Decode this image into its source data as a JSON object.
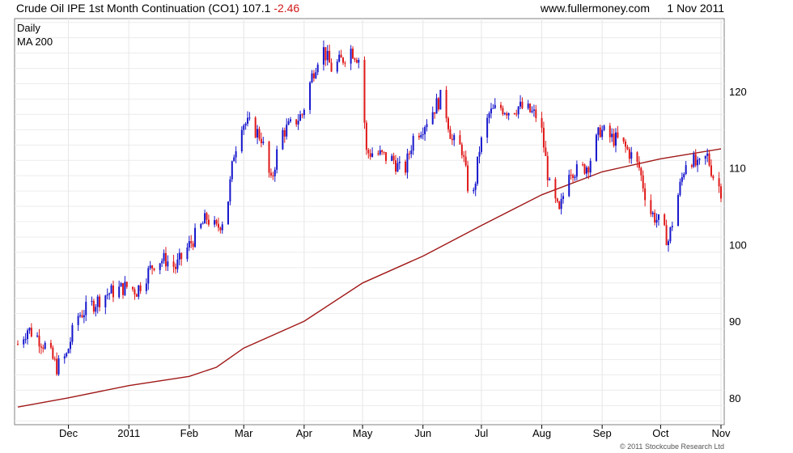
{
  "header": {
    "title": "Crude Oil IPE 1st Month Continuation (CO1)",
    "last": "107.1",
    "change": "-2.46",
    "site": "www.fullermoney.com",
    "date": "1 Nov 2011"
  },
  "legend": [
    {
      "label": "Daily",
      "color": "#1010c0"
    },
    {
      "label": "MA 200",
      "color": "#a01818"
    }
  ],
  "copyright": "© 2011 Stockcube Research Ltd",
  "colors": {
    "up": "#1515cc",
    "down": "#e01818",
    "ma": "#a01818",
    "grid": "#d0d0d0"
  },
  "chart_data": {
    "type": "candlestick",
    "title": "Crude Oil IPE 1st Month Continuation (CO1)",
    "y_axis_side": "right",
    "ylim": [
      76.5,
      129.5
    ],
    "y_ticks": [
      80,
      90,
      100,
      110,
      120
    ],
    "x_range": [
      "2010-11-05",
      "2011-11-01"
    ],
    "x_ticks": [
      {
        "label": "Dec",
        "date": "2010-12-01"
      },
      {
        "label": "2011",
        "date": "2011-01-01"
      },
      {
        "label": "Feb",
        "date": "2011-02-01"
      },
      {
        "label": "Mar",
        "date": "2011-03-01"
      },
      {
        "label": "Apr",
        "date": "2011-04-01"
      },
      {
        "label": "May",
        "date": "2011-05-01"
      },
      {
        "label": "Jun",
        "date": "2011-06-01"
      },
      {
        "label": "Jul",
        "date": "2011-07-01"
      },
      {
        "label": "Aug",
        "date": "2011-08-01"
      },
      {
        "label": "Sep",
        "date": "2011-09-01"
      },
      {
        "label": "Oct",
        "date": "2011-10-01"
      },
      {
        "label": "Nov",
        "date": "2011-11-01"
      }
    ],
    "series": [
      {
        "name": "Daily",
        "kind": "price",
        "points": [
          [
            "2010-11-05",
            87.0
          ],
          [
            "2010-11-10",
            89.0
          ],
          [
            "2010-11-15",
            88.0
          ],
          [
            "2010-11-20",
            86.5
          ],
          [
            "2010-11-25",
            84.0
          ],
          [
            "2010-11-30",
            85.5
          ],
          [
            "2010-12-05",
            90.5
          ],
          [
            "2010-12-10",
            91.5
          ],
          [
            "2010-12-15",
            92.5
          ],
          [
            "2010-12-20",
            93.5
          ],
          [
            "2010-12-25",
            94.0
          ],
          [
            "2010-12-31",
            94.5
          ],
          [
            "2011-01-05",
            94.0
          ],
          [
            "2011-01-10",
            96.0
          ],
          [
            "2011-01-15",
            98.0
          ],
          [
            "2011-01-20",
            98.0
          ],
          [
            "2011-01-25",
            97.0
          ],
          [
            "2011-01-31",
            99.5
          ],
          [
            "2011-02-05",
            101.5
          ],
          [
            "2011-02-10",
            103.5
          ],
          [
            "2011-02-15",
            102.0
          ],
          [
            "2011-02-20",
            104.0
          ],
          [
            "2011-02-24",
            112.0
          ],
          [
            "2011-02-28",
            116.0
          ],
          [
            "2011-03-05",
            115.5
          ],
          [
            "2011-03-10",
            114.0
          ],
          [
            "2011-03-15",
            108.0
          ],
          [
            "2011-03-20",
            114.5
          ],
          [
            "2011-03-25",
            115.5
          ],
          [
            "2011-03-31",
            117.0
          ],
          [
            "2011-04-05",
            122.0
          ],
          [
            "2011-04-10",
            126.0
          ],
          [
            "2011-04-15",
            123.0
          ],
          [
            "2011-04-20",
            124.0
          ],
          [
            "2011-04-25",
            125.5
          ],
          [
            "2011-04-30",
            124.0
          ],
          [
            "2011-05-03",
            112.0
          ],
          [
            "2011-05-07",
            112.0
          ],
          [
            "2011-05-12",
            111.5
          ],
          [
            "2011-05-17",
            111.0
          ],
          [
            "2011-05-22",
            109.0
          ],
          [
            "2011-05-27",
            114.0
          ],
          [
            "2011-06-01",
            115.5
          ],
          [
            "2011-06-06",
            117.5
          ],
          [
            "2011-06-11",
            119.5
          ],
          [
            "2011-06-16",
            113.5
          ],
          [
            "2011-06-21",
            112.5
          ],
          [
            "2011-06-26",
            104.5
          ],
          [
            "2011-06-30",
            112.5
          ],
          [
            "2011-07-05",
            117.0
          ],
          [
            "2011-07-10",
            118.0
          ],
          [
            "2011-07-15",
            117.5
          ],
          [
            "2011-07-20",
            118.0
          ],
          [
            "2011-07-25",
            117.5
          ],
          [
            "2011-07-31",
            116.5
          ],
          [
            "2011-08-05",
            107.5
          ],
          [
            "2011-08-10",
            104.0
          ],
          [
            "2011-08-15",
            110.0
          ],
          [
            "2011-08-20",
            109.5
          ],
          [
            "2011-08-25",
            110.5
          ],
          [
            "2011-08-31",
            115.0
          ],
          [
            "2011-09-05",
            114.0
          ],
          [
            "2011-09-10",
            113.5
          ],
          [
            "2011-09-15",
            112.0
          ],
          [
            "2011-09-20",
            110.0
          ],
          [
            "2011-09-25",
            104.5
          ],
          [
            "2011-09-30",
            103.0
          ],
          [
            "2011-10-05",
            100.5
          ],
          [
            "2011-10-10",
            106.5
          ],
          [
            "2011-10-15",
            112.0
          ],
          [
            "2011-10-20",
            110.0
          ],
          [
            "2011-10-25",
            111.5
          ],
          [
            "2011-10-28",
            109.0
          ],
          [
            "2011-11-01",
            107.1
          ]
        ]
      },
      {
        "name": "MA 200",
        "kind": "line",
        "points": [
          [
            "2010-11-05",
            78.8
          ],
          [
            "2010-12-01",
            80.0
          ],
          [
            "2011-01-01",
            81.6
          ],
          [
            "2011-02-01",
            82.8
          ],
          [
            "2011-02-15",
            84.0
          ],
          [
            "2011-03-01",
            86.5
          ],
          [
            "2011-04-01",
            90.0
          ],
          [
            "2011-05-01",
            95.0
          ],
          [
            "2011-06-01",
            98.5
          ],
          [
            "2011-07-01",
            102.5
          ],
          [
            "2011-08-01",
            106.5
          ],
          [
            "2011-09-01",
            109.5
          ],
          [
            "2011-10-01",
            111.2
          ],
          [
            "2011-11-01",
            112.5
          ]
        ]
      }
    ]
  }
}
